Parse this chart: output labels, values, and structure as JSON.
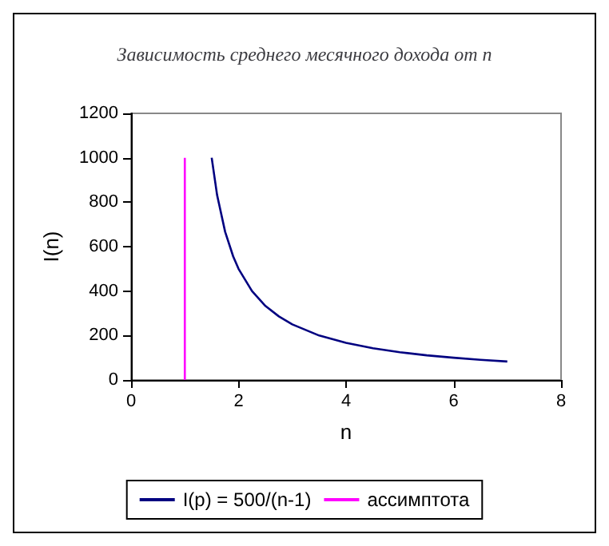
{
  "chart_data": {
    "type": "line",
    "title": "Зависимость среднего месячного дохода от n",
    "xlabel": "n",
    "ylabel": "I(n)",
    "xlim": [
      0,
      8
    ],
    "xticks": [
      0,
      2,
      4,
      6,
      8
    ],
    "ylim": [
      0,
      1200
    ],
    "yticks": [
      0,
      200,
      400,
      600,
      800,
      1000,
      1200
    ],
    "grid": false,
    "legend": "bottom",
    "marker": "none",
    "line_style": "solid",
    "series": [
      {
        "name": "I(p) = 500/(n-1)",
        "color": "#000080",
        "x": [
          1.5,
          1.6,
          1.75,
          1.9,
          2,
          2.25,
          2.5,
          2.75,
          3,
          3.5,
          4,
          4.5,
          5,
          5.5,
          6,
          6.5,
          7
        ],
        "values": [
          1000,
          833,
          667,
          556,
          500,
          400,
          333,
          286,
          250,
          200,
          167,
          143,
          125,
          111,
          100,
          91,
          83
        ]
      },
      {
        "name": "ассимптота",
        "color": "#ff00ff",
        "x": [
          1,
          1
        ],
        "values": [
          0,
          1000
        ]
      }
    ]
  }
}
